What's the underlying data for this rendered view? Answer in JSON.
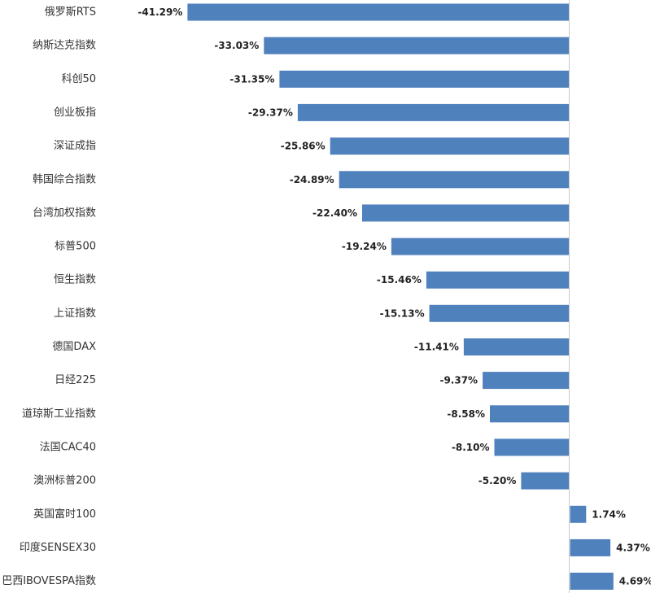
{
  "chart_data": {
    "type": "bar",
    "orientation": "horizontal",
    "title": "",
    "xlabel": "",
    "ylabel": "",
    "grid": false,
    "legend": "none",
    "bar_color": "#4F81BD",
    "axis_color": "#C8C8C8",
    "xlim": [
      -41.29,
      4.69
    ],
    "categories": [
      "俄罗斯RTS",
      "纳斯达克指数",
      "科创50",
      "创业板指",
      "深证成指",
      "韩国综合指数",
      "台湾加权指数",
      "标普500",
      "恒生指数",
      "上证指数",
      "德国DAX",
      "日经225",
      "道琼斯工业指数",
      "法国CAC40",
      "澳洲标普200",
      "英国富时100",
      "印度SENSEX30",
      "巴西IBOVESPA指数"
    ],
    "values": [
      -41.29,
      -33.03,
      -31.35,
      -29.37,
      -25.86,
      -24.89,
      -22.4,
      -19.24,
      -15.46,
      -15.13,
      -11.41,
      -9.37,
      -8.58,
      -8.1,
      -5.2,
      1.74,
      4.37,
      4.69
    ],
    "value_labels": [
      "-41.29%",
      "-33.03%",
      "-31.35%",
      "-29.37%",
      "-25.86%",
      "-24.89%",
      "-22.40%",
      "-19.24%",
      "-15.46%",
      "-15.13%",
      "-11.41%",
      "-9.37%",
      "-8.58%",
      "-8.10%",
      "-5.20%",
      "1.74%",
      "4.37%",
      "4.69%"
    ]
  }
}
